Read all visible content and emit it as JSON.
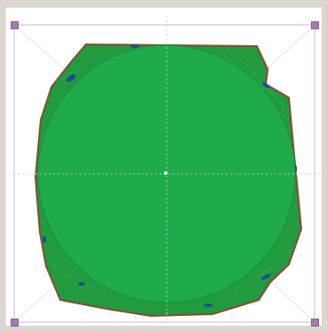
{
  "canvas": {
    "background": "#ffffff",
    "frame_color": "#dcd6d0"
  },
  "shape": {
    "fill_color": "#1fab4c",
    "shadow_fill_color": "#229a3e",
    "outline_color": "#8a4a36",
    "stitch_accent_color": "#1d4d8f",
    "guide_color": "#cfeedd"
  },
  "selection": {
    "handle_color": "#a779b2",
    "box_color": "#c9b8cf",
    "diagonal_color": "#e6e6e6",
    "handles": [
      "top-left",
      "top-right",
      "bottom-left",
      "bottom-right"
    ]
  },
  "icons": {
    "center": "center-dot-icon",
    "handle": "resize-handle-icon"
  }
}
